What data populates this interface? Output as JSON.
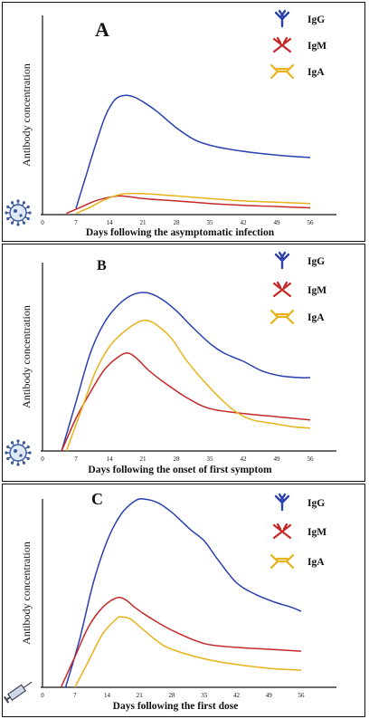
{
  "figure": {
    "panels": [
      {
        "letter": "A",
        "xlabel": "Days following the asymptomatic infection",
        "ylabel": "Antibody concentration",
        "icon": "virus-icon",
        "legend": [
          "IgG",
          "IgM",
          "IgA"
        ]
      },
      {
        "letter": "B",
        "xlabel": "Days following the onset of first symptom",
        "ylabel": "Antibody concentration",
        "icon": "virus-icon",
        "legend": [
          "IgG",
          "IgM",
          "IgA"
        ]
      },
      {
        "letter": "C",
        "xlabel": "Days following the first dose",
        "ylabel": "Antibody concentration",
        "icon": "syringe-icon",
        "legend": [
          "IgG",
          "IgM",
          "IgA"
        ]
      }
    ]
  },
  "colors": {
    "IgG": "#2a3fb0",
    "IgM": "#c62828",
    "IgA": "#e8b21a"
  },
  "chart_data": [
    {
      "type": "line",
      "title": "A",
      "xlabel": "Days following the asymptomatic infection",
      "ylabel": "Antibody concentration",
      "xticks": [
        0,
        7,
        14,
        21,
        28,
        35,
        42,
        49,
        56
      ],
      "xlim": [
        0,
        58
      ],
      "ylim": [
        0,
        100
      ],
      "series": [
        {
          "name": "IgG",
          "x": [
            7,
            9,
            11,
            13,
            15,
            17,
            19,
            21,
            24,
            28,
            32,
            36,
            42,
            49,
            56
          ],
          "y": [
            5,
            30,
            55,
            78,
            92,
            96,
            95,
            91,
            83,
            70,
            60,
            55,
            51,
            48,
            46
          ]
        },
        {
          "name": "IgM",
          "x": [
            5,
            8,
            11,
            14,
            16,
            18,
            21,
            28,
            35,
            42,
            49,
            56
          ],
          "y": [
            1,
            6,
            11,
            14,
            15,
            14.5,
            13,
            11,
            9,
            7.5,
            6.5,
            5.5
          ]
        },
        {
          "name": "IgA",
          "x": [
            7,
            10,
            13,
            16,
            18,
            20,
            23,
            28,
            35,
            42,
            49,
            56
          ],
          "y": [
            1,
            6,
            12,
            16,
            17,
            17,
            16.5,
            15,
            13,
            11,
            10,
            9
          ]
        }
      ]
    },
    {
      "type": "line",
      "title": "B",
      "xlabel": "Days following the onset of first symptom",
      "ylabel": "Antibody concentration",
      "xticks": [
        0,
        7,
        14,
        21,
        28,
        35,
        42,
        49,
        56
      ],
      "xlim": [
        0,
        58
      ],
      "ylim": [
        0,
        100
      ],
      "series": [
        {
          "name": "IgG",
          "x": [
            4,
            7,
            10,
            13,
            16,
            19,
            22,
            25,
            28,
            31,
            35,
            38,
            42,
            46,
            50,
            54,
            56
          ],
          "y": [
            0,
            30,
            60,
            79,
            90,
            96,
            97,
            93,
            86,
            77,
            66,
            60,
            55,
            49,
            46,
            45,
            45
          ]
        },
        {
          "name": "IgM",
          "x": [
            4,
            7,
            10,
            13,
            16,
            18,
            20,
            22,
            25,
            30,
            35,
            42,
            49,
            56
          ],
          "y": [
            0,
            20,
            36,
            50,
            58,
            60,
            56,
            50,
            43,
            33,
            26,
            23,
            21,
            19
          ]
        },
        {
          "name": "IgA",
          "x": [
            5,
            8,
            11,
            14,
            17,
            20,
            22,
            24,
            27,
            30,
            34,
            38,
            41,
            44,
            48,
            52,
            56
          ],
          "y": [
            0,
            24,
            48,
            64,
            73,
            79,
            80,
            77,
            69,
            56,
            42,
            30,
            23,
            19,
            17,
            15,
            14
          ]
        }
      ]
    },
    {
      "type": "line",
      "title": "C",
      "xlabel": "Days following the first dose",
      "ylabel": "Antibody concentration",
      "xticks": [
        0,
        7,
        14,
        21,
        28,
        35,
        42,
        49,
        56
      ],
      "xlim": [
        0,
        58
      ],
      "ylim": [
        0,
        100
      ],
      "series": [
        {
          "name": "IgG",
          "x": [
            5,
            8,
            11,
            14,
            17,
            20,
            22,
            25,
            28,
            32,
            35,
            38,
            42,
            46,
            50,
            54,
            56
          ],
          "y": [
            0,
            25,
            55,
            77,
            91,
            98,
            99,
            97,
            92,
            83,
            77,
            67,
            55,
            49,
            45,
            42,
            40
          ]
        },
        {
          "name": "IgM",
          "x": [
            4,
            7,
            10,
            13,
            16,
            18,
            20,
            23,
            28,
            35,
            42,
            49,
            56
          ],
          "y": [
            0,
            16,
            32,
            42,
            47,
            46,
            42,
            37,
            30,
            23,
            21,
            20,
            19
          ]
        },
        {
          "name": "IgA",
          "x": [
            7,
            10,
            13,
            16,
            17,
            19,
            21,
            25,
            28,
            35,
            42,
            49,
            56
          ],
          "y": [
            0,
            14,
            28,
            36,
            37,
            36,
            32,
            24,
            20,
            15,
            12,
            10,
            9
          ]
        }
      ]
    }
  ]
}
